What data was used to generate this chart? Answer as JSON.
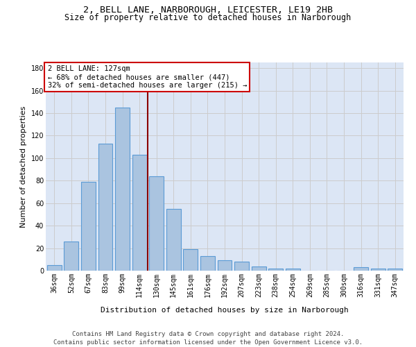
{
  "title_line1": "2, BELL LANE, NARBOROUGH, LEICESTER, LE19 2HB",
  "title_line2": "Size of property relative to detached houses in Narborough",
  "xlabel": "Distribution of detached houses by size in Narborough",
  "ylabel": "Number of detached properties",
  "categories": [
    "36sqm",
    "52sqm",
    "67sqm",
    "83sqm",
    "99sqm",
    "114sqm",
    "130sqm",
    "145sqm",
    "161sqm",
    "176sqm",
    "192sqm",
    "207sqm",
    "223sqm",
    "238sqm",
    "254sqm",
    "269sqm",
    "285sqm",
    "300sqm",
    "316sqm",
    "331sqm",
    "347sqm"
  ],
  "values": [
    5,
    26,
    79,
    113,
    145,
    103,
    84,
    55,
    19,
    13,
    9,
    8,
    4,
    2,
    2,
    0,
    0,
    0,
    3,
    2,
    2
  ],
  "bar_color": "#aac4e0",
  "bar_edge_color": "#5b9bd5",
  "vline_pos": 5.5,
  "vline_color": "#8b0000",
  "annotation_text": "2 BELL LANE: 127sqm\n← 68% of detached houses are smaller (447)\n32% of semi-detached houses are larger (215) →",
  "annotation_box_color": "white",
  "annotation_box_edge_color": "#cc0000",
  "ylim": [
    0,
    185
  ],
  "yticks": [
    0,
    20,
    40,
    60,
    80,
    100,
    120,
    140,
    160,
    180
  ],
  "grid_color": "#cccccc",
  "bg_color": "#dce6f5",
  "footer_line1": "Contains HM Land Registry data © Crown copyright and database right 2024.",
  "footer_line2": "Contains public sector information licensed under the Open Government Licence v3.0.",
  "title_fontsize": 9.5,
  "subtitle_fontsize": 8.5,
  "axis_label_fontsize": 8,
  "tick_fontsize": 7,
  "annotation_fontsize": 7.5,
  "footer_fontsize": 6.5
}
